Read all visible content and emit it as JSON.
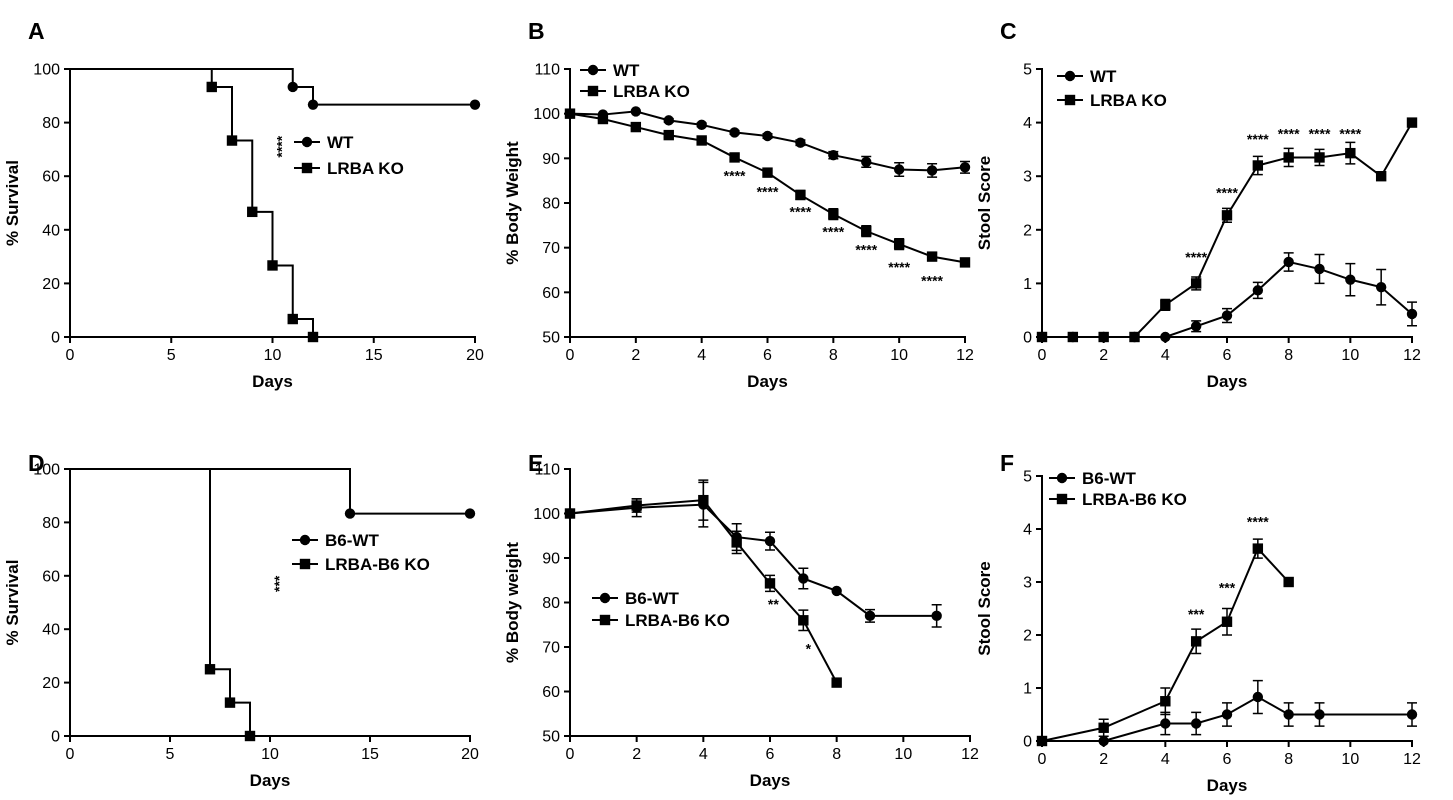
{
  "chart_data": [
    {
      "panel": "A",
      "type": "line",
      "subtype": "survival-step",
      "xlabel": "Days",
      "ylabel": "% Survival",
      "xlim": [
        0,
        20
      ],
      "ylim": [
        0,
        100
      ],
      "xticks": [
        0,
        5,
        10,
        15,
        20
      ],
      "yticks": [
        0,
        20,
        40,
        60,
        80,
        100
      ],
      "legend": "center-right",
      "significance": [
        {
          "label": "****",
          "x": 10.7,
          "y": 71,
          "vertical": true
        }
      ],
      "series": [
        {
          "name": "WT",
          "marker": "circle",
          "x": [
            0,
            11,
            12,
            20
          ],
          "y": [
            100,
            93.3,
            86.7,
            86.7
          ],
          "marked": [
            false,
            true,
            true,
            true
          ]
        },
        {
          "name": "LRBA KO",
          "marker": "square",
          "x": [
            0,
            7,
            8,
            9,
            10,
            11,
            12
          ],
          "y": [
            100,
            93.3,
            73.3,
            46.7,
            26.7,
            6.7,
            0
          ],
          "marked": [
            false,
            true,
            true,
            true,
            true,
            true,
            true
          ]
        }
      ]
    },
    {
      "panel": "B",
      "type": "line",
      "xlabel": "Days",
      "ylabel": "% Body Weight",
      "xlim": [
        0,
        12
      ],
      "ylim": [
        50,
        110
      ],
      "xticks": [
        0,
        2,
        4,
        6,
        8,
        10,
        12
      ],
      "yticks": [
        50,
        60,
        70,
        80,
        90,
        100,
        110
      ],
      "legend": "top-left",
      "significance": [
        {
          "label": "****",
          "x": 5,
          "y": 85
        },
        {
          "label": "****",
          "x": 6,
          "y": 81.5
        },
        {
          "label": "****",
          "x": 7,
          "y": 77
        },
        {
          "label": "****",
          "x": 8,
          "y": 72.5
        },
        {
          "label": "****",
          "x": 9,
          "y": 68.5
        },
        {
          "label": "****",
          "x": 10,
          "y": 64.5
        },
        {
          "label": "****",
          "x": 11,
          "y": 61.5
        }
      ],
      "series": [
        {
          "name": "WT",
          "marker": "circle",
          "x": [
            0,
            1,
            2,
            3,
            4,
            5,
            6,
            7,
            8,
            9,
            10,
            11,
            12
          ],
          "y": [
            100,
            99.8,
            100.5,
            98.5,
            97.5,
            95.8,
            95,
            93.5,
            90.7,
            89.2,
            87.5,
            87.3,
            88
          ],
          "err": [
            0,
            0,
            0,
            0.4,
            0.4,
            0.4,
            0.5,
            0.6,
            0.8,
            1.2,
            1.5,
            1.5,
            1.3
          ]
        },
        {
          "name": "LRBA KO",
          "marker": "square",
          "x": [
            0,
            1,
            2,
            3,
            4,
            5,
            6,
            7,
            8,
            9,
            10,
            11,
            12
          ],
          "y": [
            100,
            98.8,
            97,
            95.2,
            94,
            90.2,
            86.8,
            81.8,
            77.5,
            73.7,
            70.8,
            68,
            66.7
          ],
          "err": [
            0,
            0.3,
            0.4,
            0.5,
            0.6,
            0.7,
            0.8,
            1,
            1.2,
            1.2,
            1.2,
            0.8,
            0.6
          ]
        }
      ]
    },
    {
      "panel": "C",
      "type": "line",
      "xlabel": "Days",
      "ylabel": "Stool Score",
      "xlim": [
        0,
        12
      ],
      "ylim": [
        0,
        5
      ],
      "xticks": [
        0,
        2,
        4,
        6,
        8,
        10,
        12
      ],
      "yticks": [
        0,
        1,
        2,
        3,
        4,
        5
      ],
      "legend": "top-left",
      "significance": [
        {
          "label": "****",
          "x": 5,
          "y": 1.4
        },
        {
          "label": "****",
          "x": 6,
          "y": 2.6
        },
        {
          "label": "****",
          "x": 7,
          "y": 3.6
        },
        {
          "label": "****",
          "x": 8,
          "y": 3.7
        },
        {
          "label": "****",
          "x": 9,
          "y": 3.7
        },
        {
          "label": "****",
          "x": 10,
          "y": 3.7
        }
      ],
      "series": [
        {
          "name": "WT",
          "marker": "circle",
          "x": [
            0,
            1,
            2,
            3,
            4,
            5,
            6,
            7,
            8,
            9,
            10,
            11,
            12
          ],
          "y": [
            0,
            0,
            0,
            0,
            0,
            0.2,
            0.4,
            0.87,
            1.4,
            1.27,
            1.07,
            0.93,
            0.43
          ],
          "err": [
            0,
            0,
            0,
            0,
            0,
            0.1,
            0.13,
            0.15,
            0.17,
            0.27,
            0.3,
            0.33,
            0.22
          ]
        },
        {
          "name": "LRBA KO",
          "marker": "square",
          "x": [
            0,
            1,
            2,
            3,
            4,
            5,
            6,
            7,
            8,
            9,
            10,
            11,
            12
          ],
          "y": [
            0,
            0,
            0,
            0,
            0.6,
            1,
            2.27,
            3.2,
            3.35,
            3.35,
            3.43,
            3,
            4
          ],
          "err": [
            0,
            0,
            0,
            0,
            0.1,
            0.12,
            0.13,
            0.17,
            0.17,
            0.15,
            0.2,
            0,
            0
          ]
        }
      ]
    },
    {
      "panel": "D",
      "type": "line",
      "subtype": "survival-step",
      "xlabel": "Days",
      "ylabel": "% Survival",
      "xlim": [
        0,
        20
      ],
      "ylim": [
        0,
        100
      ],
      "xticks": [
        0,
        5,
        10,
        15,
        20
      ],
      "yticks": [
        0,
        20,
        40,
        60,
        80,
        100
      ],
      "legend": "center-right",
      "significance": [
        {
          "label": "***",
          "x": 10.7,
          "y": 57,
          "vertical": true
        }
      ],
      "series": [
        {
          "name": "B6-WT",
          "marker": "circle",
          "x": [
            0,
            14,
            20
          ],
          "y": [
            100,
            83.3,
            83.3
          ],
          "marked": [
            false,
            true,
            true
          ]
        },
        {
          "name": "LRBA-B6 KO",
          "marker": "square",
          "x": [
            0,
            7,
            8,
            9
          ],
          "y": [
            100,
            25,
            12.5,
            0
          ],
          "marked": [
            false,
            true,
            true,
            true
          ]
        }
      ]
    },
    {
      "panel": "E",
      "type": "line",
      "xlabel": "Days",
      "ylabel": "% Body weight",
      "xlim": [
        0,
        12
      ],
      "ylim": [
        50,
        110
      ],
      "xticks": [
        0,
        2,
        4,
        6,
        8,
        10,
        12
      ],
      "yticks": [
        50,
        60,
        70,
        80,
        90,
        100,
        110
      ],
      "legend": "center-left",
      "significance": [
        {
          "label": "**",
          "x": 6.1,
          "y": 78.5
        },
        {
          "label": "*",
          "x": 7.15,
          "y": 68.5
        }
      ],
      "series": [
        {
          "name": "B6-WT",
          "marker": "circle",
          "x": [
            0,
            2,
            4,
            5,
            6,
            7,
            8,
            9,
            11
          ],
          "y": [
            100,
            101.3,
            102,
            94.7,
            93.8,
            85.4,
            82.6,
            77,
            77
          ],
          "err": [
            0,
            2,
            5,
            3,
            2,
            2.3,
            0,
            1.4,
            2.5
          ]
        },
        {
          "name": "LRBA-B6 KO",
          "marker": "square",
          "x": [
            0,
            2,
            4,
            5,
            6,
            7,
            8
          ],
          "y": [
            100,
            101.8,
            103,
            93.5,
            84.3,
            76,
            62
          ],
          "err": [
            0,
            1.5,
            4.5,
            2.5,
            1.8,
            2.3,
            0
          ]
        }
      ]
    },
    {
      "panel": "F",
      "type": "line",
      "xlabel": "Days",
      "ylabel": "Stool Score",
      "xlim": [
        0,
        12
      ],
      "ylim": [
        0,
        5
      ],
      "xticks": [
        0,
        2,
        4,
        6,
        8,
        10,
        12
      ],
      "yticks": [
        0,
        1,
        2,
        3,
        4,
        5
      ],
      "legend": "top-left",
      "significance": [
        {
          "label": "***",
          "x": 5,
          "y": 2.3
        },
        {
          "label": "***",
          "x": 6,
          "y": 2.8
        },
        {
          "label": "****",
          "x": 7,
          "y": 4.05
        }
      ],
      "series": [
        {
          "name": "B6-WT",
          "marker": "circle",
          "x": [
            0,
            2,
            4,
            5,
            6,
            7,
            8,
            9,
            12
          ],
          "y": [
            0,
            0,
            0.33,
            0.33,
            0.5,
            0.83,
            0.5,
            0.5,
            0.5
          ],
          "err": [
            0,
            0,
            0.21,
            0.21,
            0.22,
            0.31,
            0.22,
            0.22,
            0.22
          ]
        },
        {
          "name": "LRBA-B6 KO",
          "marker": "square",
          "x": [
            0,
            2,
            4,
            5,
            6,
            7,
            8
          ],
          "y": [
            0,
            0.25,
            0.75,
            1.88,
            2.25,
            3.63,
            3
          ],
          "err": [
            0,
            0.16,
            0.25,
            0.23,
            0.25,
            0.18,
            0
          ]
        }
      ]
    }
  ]
}
